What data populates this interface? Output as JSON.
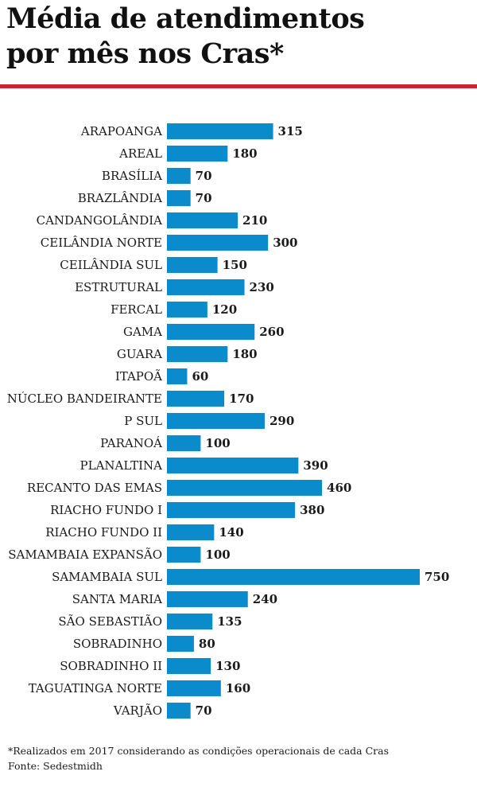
{
  "title_line1": "Média de atendimentos",
  "title_line2": "por mês nos Cras*",
  "accent_color": "#c8282d",
  "bar_color": "#0a8ccc",
  "chart_data": {
    "type": "bar",
    "orientation": "horizontal",
    "categories": [
      "ARAPOANGA",
      "AREAL",
      "BRASÍLIA",
      "BRAZLÂNDIA",
      "CANDANGOLÂNDIA",
      "CEILÂNDIA NORTE",
      "CEILÂNDIA SUL",
      "ESTRUTURAL",
      "FERCAL",
      "GAMA",
      "GUARA",
      "ITAPOÃ",
      "NÚCLEO BANDEIRANTE",
      "P SUL",
      "PARANOÁ",
      "PLANALTINA",
      "RECANTO DAS EMAS",
      "RIACHO FUNDO I",
      "RIACHO FUNDO II",
      "SAMAMBAIA EXPANSÃO",
      "SAMAMBAIA SUL",
      "SANTA MARIA",
      "SÃO SEBASTIÃO",
      "SOBRADINHO",
      "SOBRADINHO II",
      "TAGUATINGA NORTE",
      "VARJÃO"
    ],
    "values": [
      315,
      180,
      70,
      70,
      210,
      300,
      150,
      230,
      120,
      260,
      180,
      60,
      170,
      290,
      100,
      390,
      460,
      380,
      140,
      100,
      750,
      240,
      135,
      80,
      130,
      160,
      70
    ],
    "xlim": [
      0,
      750
    ],
    "grid": false,
    "legend": "none"
  },
  "footnote_line1": "*Realizados em 2017 considerando as condições operacionais de cada Cras",
  "footnote_line2": "Fonte: Sedestmidh"
}
